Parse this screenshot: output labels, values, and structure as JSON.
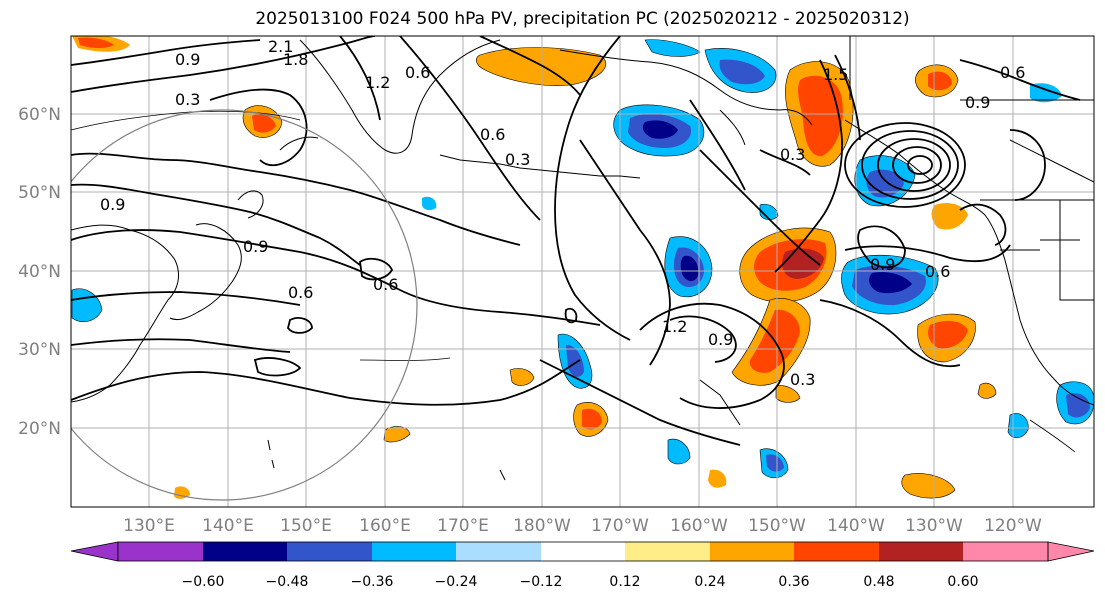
{
  "title": "2025013100 F024 500 hPa PV, precipitation PC (2025020212 - 2025020312)",
  "map": {
    "projection": "PlateCarree",
    "lon_ticks": [
      "130°E",
      "140°E",
      "150°E",
      "160°E",
      "170°E",
      "180°W",
      "170°W",
      "160°W",
      "150°W",
      "140°W",
      "130°W",
      "120°W"
    ],
    "lat_ticks": [
      "60°N",
      "50°N",
      "40°N",
      "30°N",
      "20°N"
    ],
    "contour_labels": [
      "2.1",
      "1.8",
      "0.9",
      "1.2",
      "0.6",
      "0.3",
      "0.6",
      "0.3",
      "1.5",
      "0.6",
      "0.9",
      "0.9",
      "0.9",
      "0.6",
      "0.6",
      "1.2",
      "0.9",
      "0.3",
      "0.9",
      "0.6",
      "0.3"
    ],
    "colors": {
      "contour": "#000000",
      "coastline": "#000000",
      "grid": "#b0b0b0",
      "circle": "#808080"
    }
  },
  "colorbar": {
    "ticks": [
      "−0.60",
      "−0.48",
      "−0.36",
      "−0.24",
      "−0.12",
      "0.12",
      "0.24",
      "0.36",
      "0.48",
      "0.60"
    ],
    "colors": [
      "#9933cc",
      "#000088",
      "#3355cc",
      "#00bbff",
      "#aaddff",
      "#ffffff",
      "#ffee88",
      "#ffa500",
      "#ff4500",
      "#b22222",
      "#ff88aa"
    ]
  }
}
